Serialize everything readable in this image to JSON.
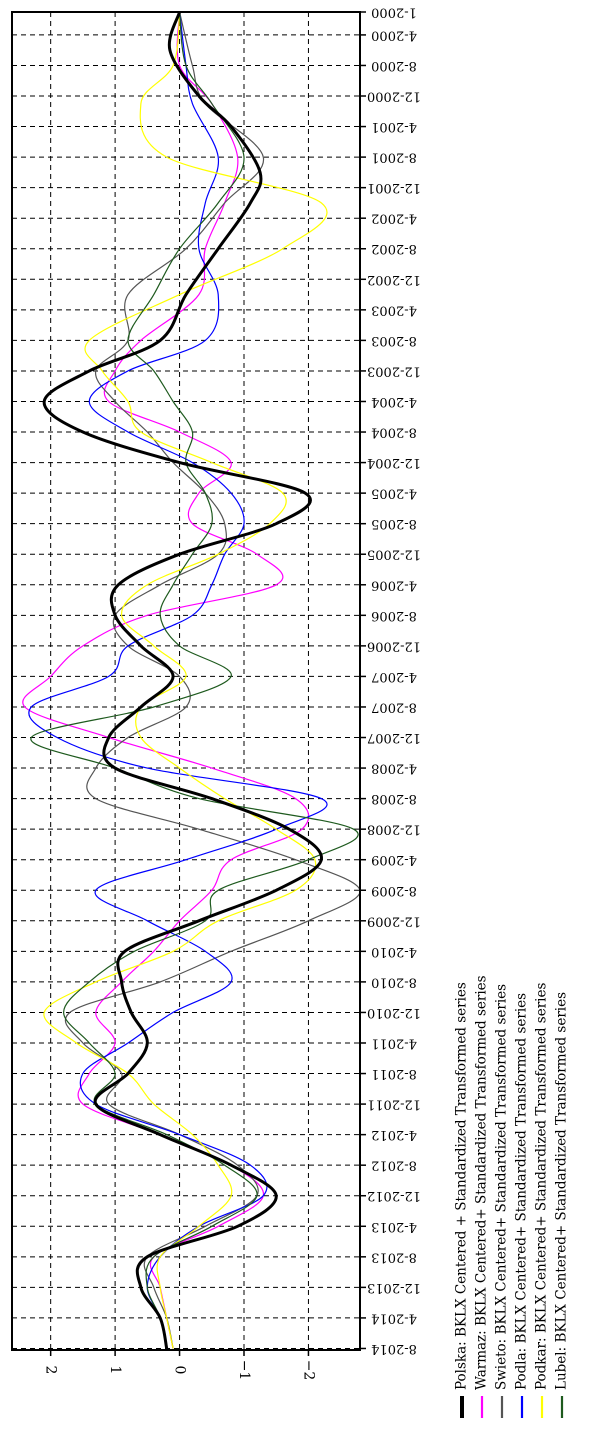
{
  "chart_data": {
    "type": "line",
    "rotated": "90deg clockwise",
    "title": "",
    "xlabel": "",
    "ylabel": "",
    "grid": true,
    "legend_position": "bottom",
    "ylim": [
      -2.8,
      2.6
    ],
    "yticks": [
      2,
      1,
      0,
      -1,
      -2
    ],
    "ytick_labels": [
      "2",
      "1",
      "0",
      "−1",
      "−2"
    ],
    "x_tick_labels": [
      "1-2000",
      "4-2000",
      "8-2000",
      "12-2000",
      "4-2001",
      "8-2001",
      "12-2001",
      "4-2002",
      "8-2002",
      "12-2002",
      "4-2003",
      "8-2003",
      "12-2003",
      "4-2004",
      "8-2004",
      "12-2004",
      "4-2005",
      "8-2005",
      "12-2005",
      "4-2006",
      "8-2006",
      "12-2006",
      "4-2007",
      "8-2007",
      "12-2007",
      "4-2008",
      "8-2008",
      "12-2008",
      "4-2009",
      "8-2009",
      "12-2009",
      "4-2010",
      "8-2010",
      "12-2010",
      "4-2011",
      "8-2011",
      "12-2011",
      "4-2012",
      "8-2012",
      "12-2012",
      "4-2013",
      "8-2013",
      "12-2013",
      "4-2014",
      "8-2014"
    ],
    "x_tick_dates": [
      "2000-01",
      "2000-04",
      "2000-08",
      "2000-12",
      "2001-04",
      "2001-08",
      "2001-12",
      "2002-04",
      "2002-08",
      "2002-12",
      "2003-04",
      "2003-08",
      "2003-12",
      "2004-04",
      "2004-08",
      "2004-12",
      "2005-04",
      "2005-08",
      "2005-12",
      "2006-04",
      "2006-08",
      "2006-12",
      "2007-04",
      "2007-08",
      "2007-12",
      "2008-04",
      "2008-08",
      "2008-12",
      "2009-04",
      "2009-08",
      "2009-12",
      "2010-04",
      "2010-08",
      "2010-12",
      "2011-04",
      "2011-08",
      "2011-12",
      "2012-04",
      "2012-08",
      "2012-12",
      "2013-04",
      "2013-08",
      "2013-12",
      "2014-04",
      "2014-08"
    ],
    "series": [
      {
        "name": "Polska: BKLX Centered + Standardized Transformed series",
        "color": "#000000",
        "width": 3,
        "x": [
          "2000-01",
          "2000-06",
          "2000-12",
          "2001-04",
          "2001-10",
          "2002-02",
          "2002-08",
          "2003-02",
          "2003-08",
          "2003-12",
          "2004-04",
          "2004-08",
          "2004-12",
          "2005-04",
          "2005-08",
          "2005-12",
          "2006-04",
          "2006-08",
          "2006-12",
          "2007-04",
          "2007-08",
          "2007-12",
          "2008-04",
          "2008-08",
          "2008-12",
          "2009-04",
          "2009-08",
          "2009-12",
          "2010-04",
          "2010-08",
          "2010-12",
          "2011-04",
          "2011-08",
          "2011-12",
          "2012-04",
          "2012-08",
          "2012-12",
          "2013-04",
          "2013-08",
          "2013-12",
          "2014-04",
          "2014-08"
        ],
        "y": [
          0.0,
          0.15,
          -0.3,
          -0.8,
          -1.25,
          -1.1,
          -0.6,
          -0.1,
          0.3,
          1.4,
          2.1,
          1.5,
          0.0,
          -1.95,
          -1.5,
          0.0,
          0.95,
          1.0,
          0.6,
          0.1,
          0.6,
          1.1,
          1.0,
          -0.5,
          -1.7,
          -2.2,
          -1.5,
          -0.3,
          0.85,
          0.9,
          0.75,
          0.5,
          0.8,
          1.3,
          0.3,
          -0.8,
          -1.5,
          -0.9,
          0.5,
          0.6,
          0.3,
          0.2
        ]
      },
      {
        "name": "Warmaz: BKLX Centered+ Standardized Transformed series",
        "color": "#ff00ff",
        "width": 1.2,
        "x": [
          "2000-01",
          "2000-08",
          "2001-01",
          "2001-08",
          "2002-02",
          "2002-08",
          "2003-02",
          "2003-08",
          "2003-12",
          "2004-04",
          "2004-08",
          "2004-12",
          "2005-04",
          "2005-08",
          "2005-12",
          "2006-04",
          "2006-08",
          "2006-12",
          "2007-04",
          "2007-08",
          "2007-12",
          "2008-04",
          "2008-08",
          "2008-12",
          "2009-04",
          "2009-08",
          "2009-12",
          "2010-04",
          "2010-08",
          "2010-12",
          "2011-04",
          "2011-08",
          "2011-12",
          "2012-04",
          "2012-08",
          "2012-12",
          "2013-04",
          "2013-08",
          "2013-12",
          "2014-04",
          "2014-08"
        ],
        "y": [
          0.0,
          0.0,
          -0.5,
          -0.9,
          -0.7,
          -0.4,
          -0.3,
          0.6,
          1.0,
          1.1,
          0.0,
          -0.8,
          -0.3,
          -0.2,
          -1.2,
          -1.5,
          0.5,
          1.5,
          2.0,
          2.4,
          1.1,
          -0.5,
          -1.8,
          -1.9,
          -0.8,
          -0.5,
          0.0,
          0.4,
          0.9,
          1.3,
          1.0,
          1.4,
          1.5,
          0.3,
          -0.8,
          -1.3,
          -0.6,
          0.4,
          0.3,
          0.2,
          0.1
        ]
      },
      {
        "name": "Swieto: BKLX Centered+ Standardized Transformed series",
        "color": "#555555",
        "width": 1.2,
        "x": [
          "2000-01",
          "2000-08",
          "2001-01",
          "2001-08",
          "2002-02",
          "2002-08",
          "2003-02",
          "2003-08",
          "2003-12",
          "2004-04",
          "2004-08",
          "2004-12",
          "2005-04",
          "2005-08",
          "2005-12",
          "2006-04",
          "2006-08",
          "2006-12",
          "2007-04",
          "2007-08",
          "2007-12",
          "2008-04",
          "2008-08",
          "2008-12",
          "2009-04",
          "2009-08",
          "2009-12",
          "2010-04",
          "2010-08",
          "2010-12",
          "2011-04",
          "2011-08",
          "2011-12",
          "2012-04",
          "2012-08",
          "2012-12",
          "2013-04",
          "2013-08",
          "2013-12",
          "2014-04",
          "2014-08"
        ],
        "y": [
          0.0,
          -0.2,
          -0.4,
          -1.3,
          -0.7,
          -0.1,
          0.8,
          0.8,
          1.3,
          1.0,
          0.5,
          0.1,
          -0.4,
          -0.7,
          -0.6,
          0.3,
          1.0,
          0.8,
          0.0,
          -0.1,
          0.8,
          1.3,
          1.3,
          -0.3,
          -1.8,
          -2.8,
          -2.0,
          -0.8,
          0.3,
          1.7,
          1.5,
          0.9,
          1.1,
          0.0,
          -0.9,
          -1.2,
          -0.4,
          0.5,
          0.4,
          0.2,
          0.1
        ]
      },
      {
        "name": "Podla: BKLX Centered+ Standardized Transformed series",
        "color": "#0000ff",
        "width": 1.2,
        "x": [
          "2000-01",
          "2000-08",
          "2001-01",
          "2001-08",
          "2002-02",
          "2002-08",
          "2003-02",
          "2003-08",
          "2003-12",
          "2004-04",
          "2004-08",
          "2004-12",
          "2005-04",
          "2005-08",
          "2005-12",
          "2006-04",
          "2006-08",
          "2006-12",
          "2007-04",
          "2007-08",
          "2007-12",
          "2008-04",
          "2008-08",
          "2008-12",
          "2009-04",
          "2009-08",
          "2009-12",
          "2010-04",
          "2010-08",
          "2010-12",
          "2011-04",
          "2011-08",
          "2011-12",
          "2012-04",
          "2012-08",
          "2012-12",
          "2013-04",
          "2013-08",
          "2013-12",
          "2014-04",
          "2014-08"
        ],
        "y": [
          0.0,
          -0.1,
          -0.2,
          -0.6,
          -0.4,
          -0.3,
          -0.6,
          -0.4,
          0.8,
          1.4,
          0.8,
          -0.2,
          -0.8,
          -1.0,
          -0.7,
          -0.5,
          -0.2,
          0.8,
          1.1,
          2.3,
          1.9,
          0.5,
          -2.2,
          -1.5,
          -0.1,
          1.3,
          0.5,
          -0.4,
          -0.8,
          0.1,
          0.8,
          1.5,
          1.3,
          0.0,
          -1.1,
          -1.3,
          -0.3,
          0.3,
          0.5,
          0.3,
          0.2
        ]
      },
      {
        "name": "Podkar: BKLX Centered+ Standardized Transformed series",
        "color": "#ffff00",
        "width": 1.2,
        "x": [
          "2000-01",
          "2000-08",
          "2001-01",
          "2001-08",
          "2002-02",
          "2002-08",
          "2003-02",
          "2003-08",
          "2003-12",
          "2004-04",
          "2004-08",
          "2004-12",
          "2005-04",
          "2005-08",
          "2005-12",
          "2006-04",
          "2006-08",
          "2006-12",
          "2007-04",
          "2007-08",
          "2007-12",
          "2008-04",
          "2008-08",
          "2008-12",
          "2009-04",
          "2009-08",
          "2009-12",
          "2010-04",
          "2010-08",
          "2010-12",
          "2011-04",
          "2011-08",
          "2011-12",
          "2012-04",
          "2012-08",
          "2012-12",
          "2013-04",
          "2013-08",
          "2013-12",
          "2014-04",
          "2014-08"
        ],
        "y": [
          0.0,
          0.1,
          0.6,
          0.2,
          -2.2,
          -1.6,
          0.0,
          1.4,
          1.2,
          0.8,
          0.6,
          -0.5,
          -1.6,
          -1.4,
          -0.6,
          0.5,
          0.9,
          0.4,
          -0.1,
          0.6,
          0.6,
          0.0,
          -0.7,
          -1.5,
          -2.1,
          -1.8,
          -0.6,
          0.1,
          1.3,
          2.1,
          1.6,
          0.8,
          0.4,
          -0.2,
          -0.6,
          -0.8,
          -0.3,
          0.3,
          0.3,
          0.2,
          0.1
        ]
      },
      {
        "name": "Lubel: BKLX Centered+ Standardized Transformed series",
        "color": "#1e5a1e",
        "width": 1.2,
        "x": [
          "2000-01",
          "2000-08",
          "2001-01",
          "2001-08",
          "2002-02",
          "2002-08",
          "2003-02",
          "2003-08",
          "2003-12",
          "2004-04",
          "2004-08",
          "2004-12",
          "2005-04",
          "2005-08",
          "2005-12",
          "2006-04",
          "2006-08",
          "2006-12",
          "2007-04",
          "2007-08",
          "2007-12",
          "2008-04",
          "2008-08",
          "2008-12",
          "2009-04",
          "2009-08",
          "2009-12",
          "2010-04",
          "2010-08",
          "2010-12",
          "2011-04",
          "2011-08",
          "2011-12",
          "2012-04",
          "2012-08",
          "2012-12",
          "2013-04",
          "2013-08",
          "2013-12",
          "2014-04",
          "2014-08"
        ],
        "y": [
          0.0,
          -0.1,
          -0.5,
          -1.0,
          -0.6,
          0.0,
          0.4,
          0.8,
          0.4,
          0.1,
          -0.2,
          -0.1,
          -0.4,
          -0.5,
          -0.2,
          0.1,
          0.3,
          0.0,
          -0.8,
          0.4,
          2.3,
          1.0,
          -0.3,
          -2.7,
          -2.0,
          -0.6,
          -0.4,
          0.7,
          1.4,
          1.8,
          1.4,
          1.0,
          1.3,
          0.2,
          -0.7,
          -1.2,
          -0.5,
          0.4,
          0.5,
          0.3,
          0.2
        ]
      }
    ]
  }
}
